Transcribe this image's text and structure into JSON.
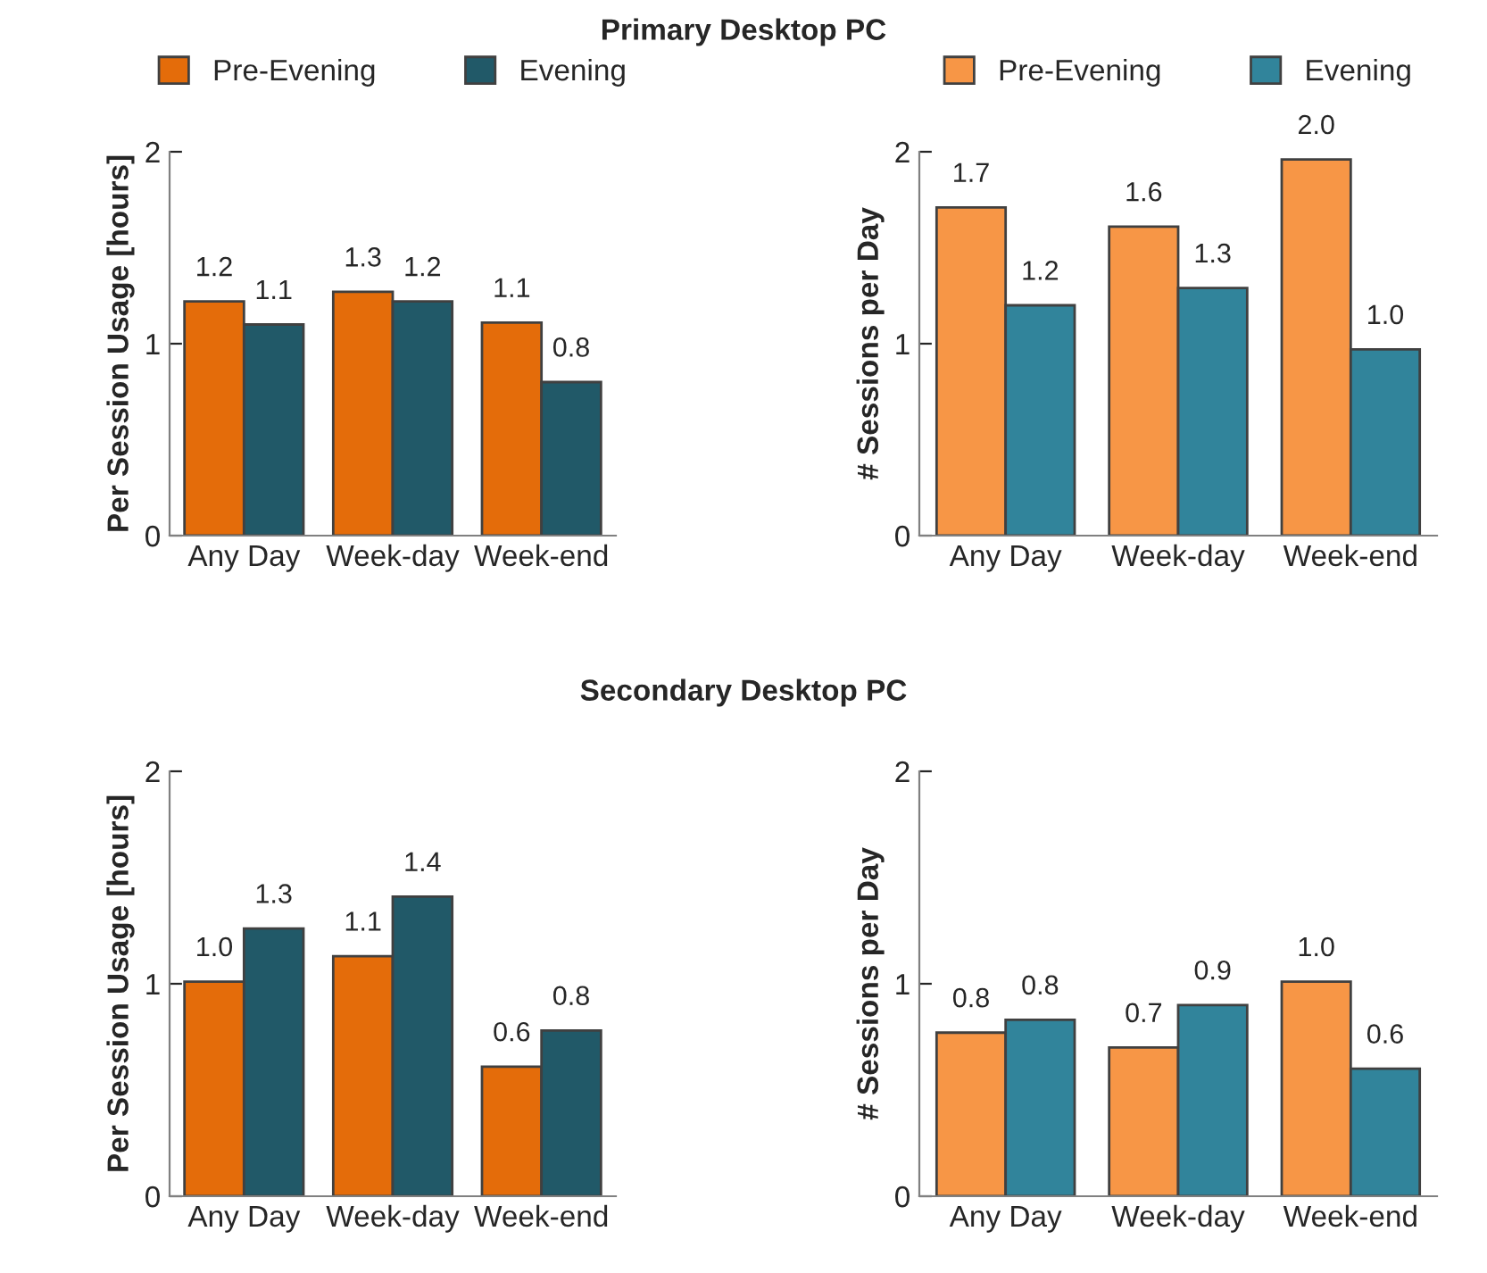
{
  "chart_data": [
    {
      "type": "bar",
      "title": "Primary Desktop PC",
      "ylabel": "Per Session Usage [hours]",
      "categories": [
        "Any Day",
        "Week-day",
        "Week-end"
      ],
      "series": [
        {
          "name": "Pre-Evening",
          "color": "#e46c0a",
          "values": [
            1.22,
            1.27,
            1.11
          ],
          "value_labels": [
            "1.2",
            "1.3",
            "1.1"
          ]
        },
        {
          "name": "Evening",
          "color": "#215968",
          "values": [
            1.1,
            1.22,
            0.8
          ],
          "value_labels": [
            "1.1",
            "1.2",
            "0.8"
          ]
        }
      ],
      "ylim": [
        0,
        2
      ],
      "yticks": [
        0,
        1,
        2
      ],
      "legend": "top"
    },
    {
      "type": "bar",
      "ylabel": "# Sessions per Day",
      "categories": [
        "Any Day",
        "Week-day",
        "Week-end"
      ],
      "series": [
        {
          "name": "Pre-Evening",
          "color": "#f79646",
          "values": [
            1.71,
            1.61,
            1.96
          ],
          "value_labels": [
            "1.7",
            "1.6",
            "2.0"
          ]
        },
        {
          "name": "Evening",
          "color": "#31849b",
          "values": [
            1.2,
            1.29,
            0.97
          ],
          "value_labels": [
            "1.2",
            "1.3",
            "1.0"
          ]
        }
      ],
      "ylim": [
        0,
        2
      ],
      "yticks": [
        0,
        1,
        2
      ],
      "legend": "top"
    },
    {
      "type": "bar",
      "title": "Secondary Desktop PC",
      "ylabel": "Per Session Usage [hours]",
      "categories": [
        "Any Day",
        "Week-day",
        "Week-end"
      ],
      "series": [
        {
          "color": "#e46c0a",
          "values": [
            1.01,
            1.13,
            0.61
          ],
          "value_labels": [
            "1.0",
            "1.1",
            "0.6"
          ]
        },
        {
          "color": "#215968",
          "values": [
            1.26,
            1.41,
            0.78
          ],
          "value_labels": [
            "1.3",
            "1.4",
            "0.8"
          ]
        }
      ],
      "ylim": [
        0,
        2
      ],
      "yticks": [
        0,
        1,
        2
      ]
    },
    {
      "type": "bar",
      "ylabel": "# Sessions per Day",
      "categories": [
        "Any Day",
        "Week-day",
        "Week-end"
      ],
      "series": [
        {
          "color": "#f79646",
          "values": [
            0.77,
            0.7,
            1.01
          ],
          "value_labels": [
            "0.8",
            "0.7",
            "1.0"
          ]
        },
        {
          "color": "#31849b",
          "values": [
            0.83,
            0.9,
            0.6
          ],
          "value_labels": [
            "0.8",
            "0.9",
            "0.6"
          ]
        }
      ],
      "ylim": [
        0,
        2
      ],
      "yticks": [
        0,
        1,
        2
      ]
    }
  ]
}
